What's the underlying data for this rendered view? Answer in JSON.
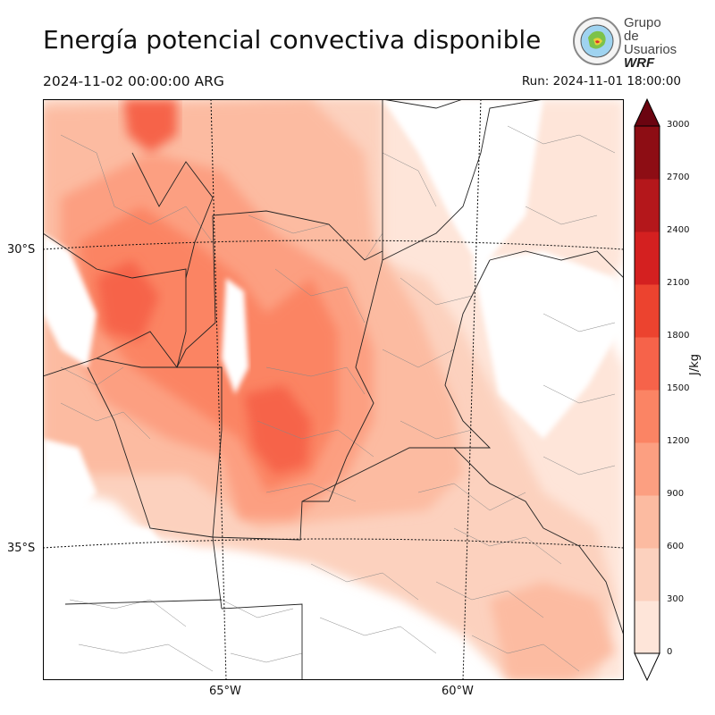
{
  "header": {
    "title": "Energía potencial convectiva disponible",
    "valid_time": "2024-11-02 00:00:00 ARG",
    "run_time": "Run: 2024-11-01 18:00:00"
  },
  "logo": {
    "line1": "Grupo de",
    "line2": "Usuarios",
    "line3": "WRF"
  },
  "map": {
    "latitude_labels": [
      "30°S",
      "35°S"
    ],
    "longitude_labels": [
      "65°W",
      "60°W"
    ]
  },
  "colorbar": {
    "unit": "J/kg",
    "ticks": [
      "0",
      "300",
      "600",
      "900",
      "1200",
      "1500",
      "1800",
      "2100",
      "2400",
      "2700",
      "3000"
    ],
    "colors": [
      "#fee5d9",
      "#fcd1be",
      "#fcbba1",
      "#fc9f81",
      "#fb8464",
      "#f6634a",
      "#ec432f",
      "#d42020",
      "#b4171b",
      "#8d0d14",
      "#6b0410"
    ]
  }
}
